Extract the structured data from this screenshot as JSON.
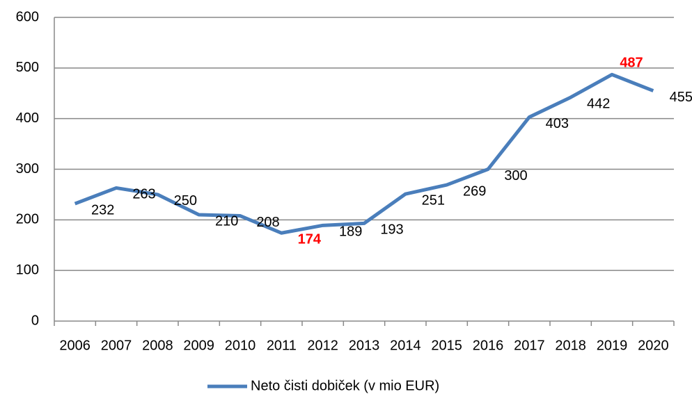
{
  "chart_data": {
    "type": "line",
    "categories": [
      "2006",
      "2007",
      "2008",
      "2009",
      "2010",
      "2011",
      "2012",
      "2013",
      "2014",
      "2015",
      "2016",
      "2017",
      "2018",
      "2019",
      "2020"
    ],
    "series": [
      {
        "name": "Neto čisti dobiček (v mio EUR)",
        "color": "#4a7ebb",
        "values": [
          232,
          263,
          250,
          210,
          208,
          174,
          189,
          193,
          251,
          269,
          300,
          403,
          442,
          487,
          455
        ]
      }
    ],
    "ylim": [
      0,
      600
    ],
    "yticks": [
      0,
      100,
      200,
      300,
      400,
      500,
      600
    ],
    "grid": true,
    "legend": "bottom",
    "highlight_color": "#ff0000"
  }
}
